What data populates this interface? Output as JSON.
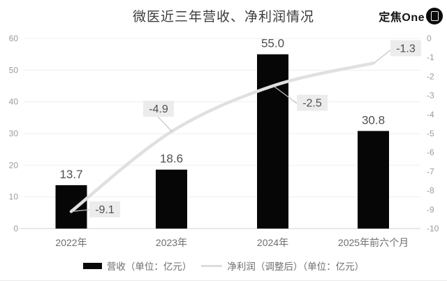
{
  "header": {
    "title": "微医近三年营收、净利润情况",
    "logo_text": "定焦One"
  },
  "chart_data": {
    "type": "bar",
    "title": "微医近三年营收、净利润情况",
    "categories": [
      "2022年",
      "2023年",
      "2024年",
      "2025年前六个月"
    ],
    "series": [
      {
        "name": "营收（单位：亿元）",
        "type": "bar",
        "axis": "left",
        "color": "#060606",
        "values": [
          13.7,
          18.6,
          55.0,
          30.8
        ]
      },
      {
        "name": "净利润（调整后）（单位：亿元）",
        "type": "line",
        "axis": "right",
        "color": "#e0e0e0",
        "values": [
          -9.1,
          -4.9,
          -2.5,
          -1.3
        ]
      }
    ],
    "left_axis": {
      "min": 0,
      "max": 60,
      "step": 10,
      "ticks": [
        "0",
        "10",
        "20",
        "30",
        "40",
        "50",
        "60"
      ]
    },
    "right_axis": {
      "min": -10,
      "max": 0,
      "step": 1,
      "ticks": [
        "0",
        "-1",
        "-2",
        "-3",
        "-4",
        "-5",
        "-6",
        "-7",
        "-8",
        "-9",
        "-10"
      ]
    },
    "grid": true,
    "legend_position": "bottom",
    "colors": {
      "grid": "#efefef",
      "axis_line": "#d9d9d9",
      "tick_text": "#9b9b9b",
      "category_text": "#6e6e6e",
      "value_text": "#4f4f4f",
      "point_label_bg": "#ececec",
      "leader_line": "#c3c3c3"
    }
  }
}
